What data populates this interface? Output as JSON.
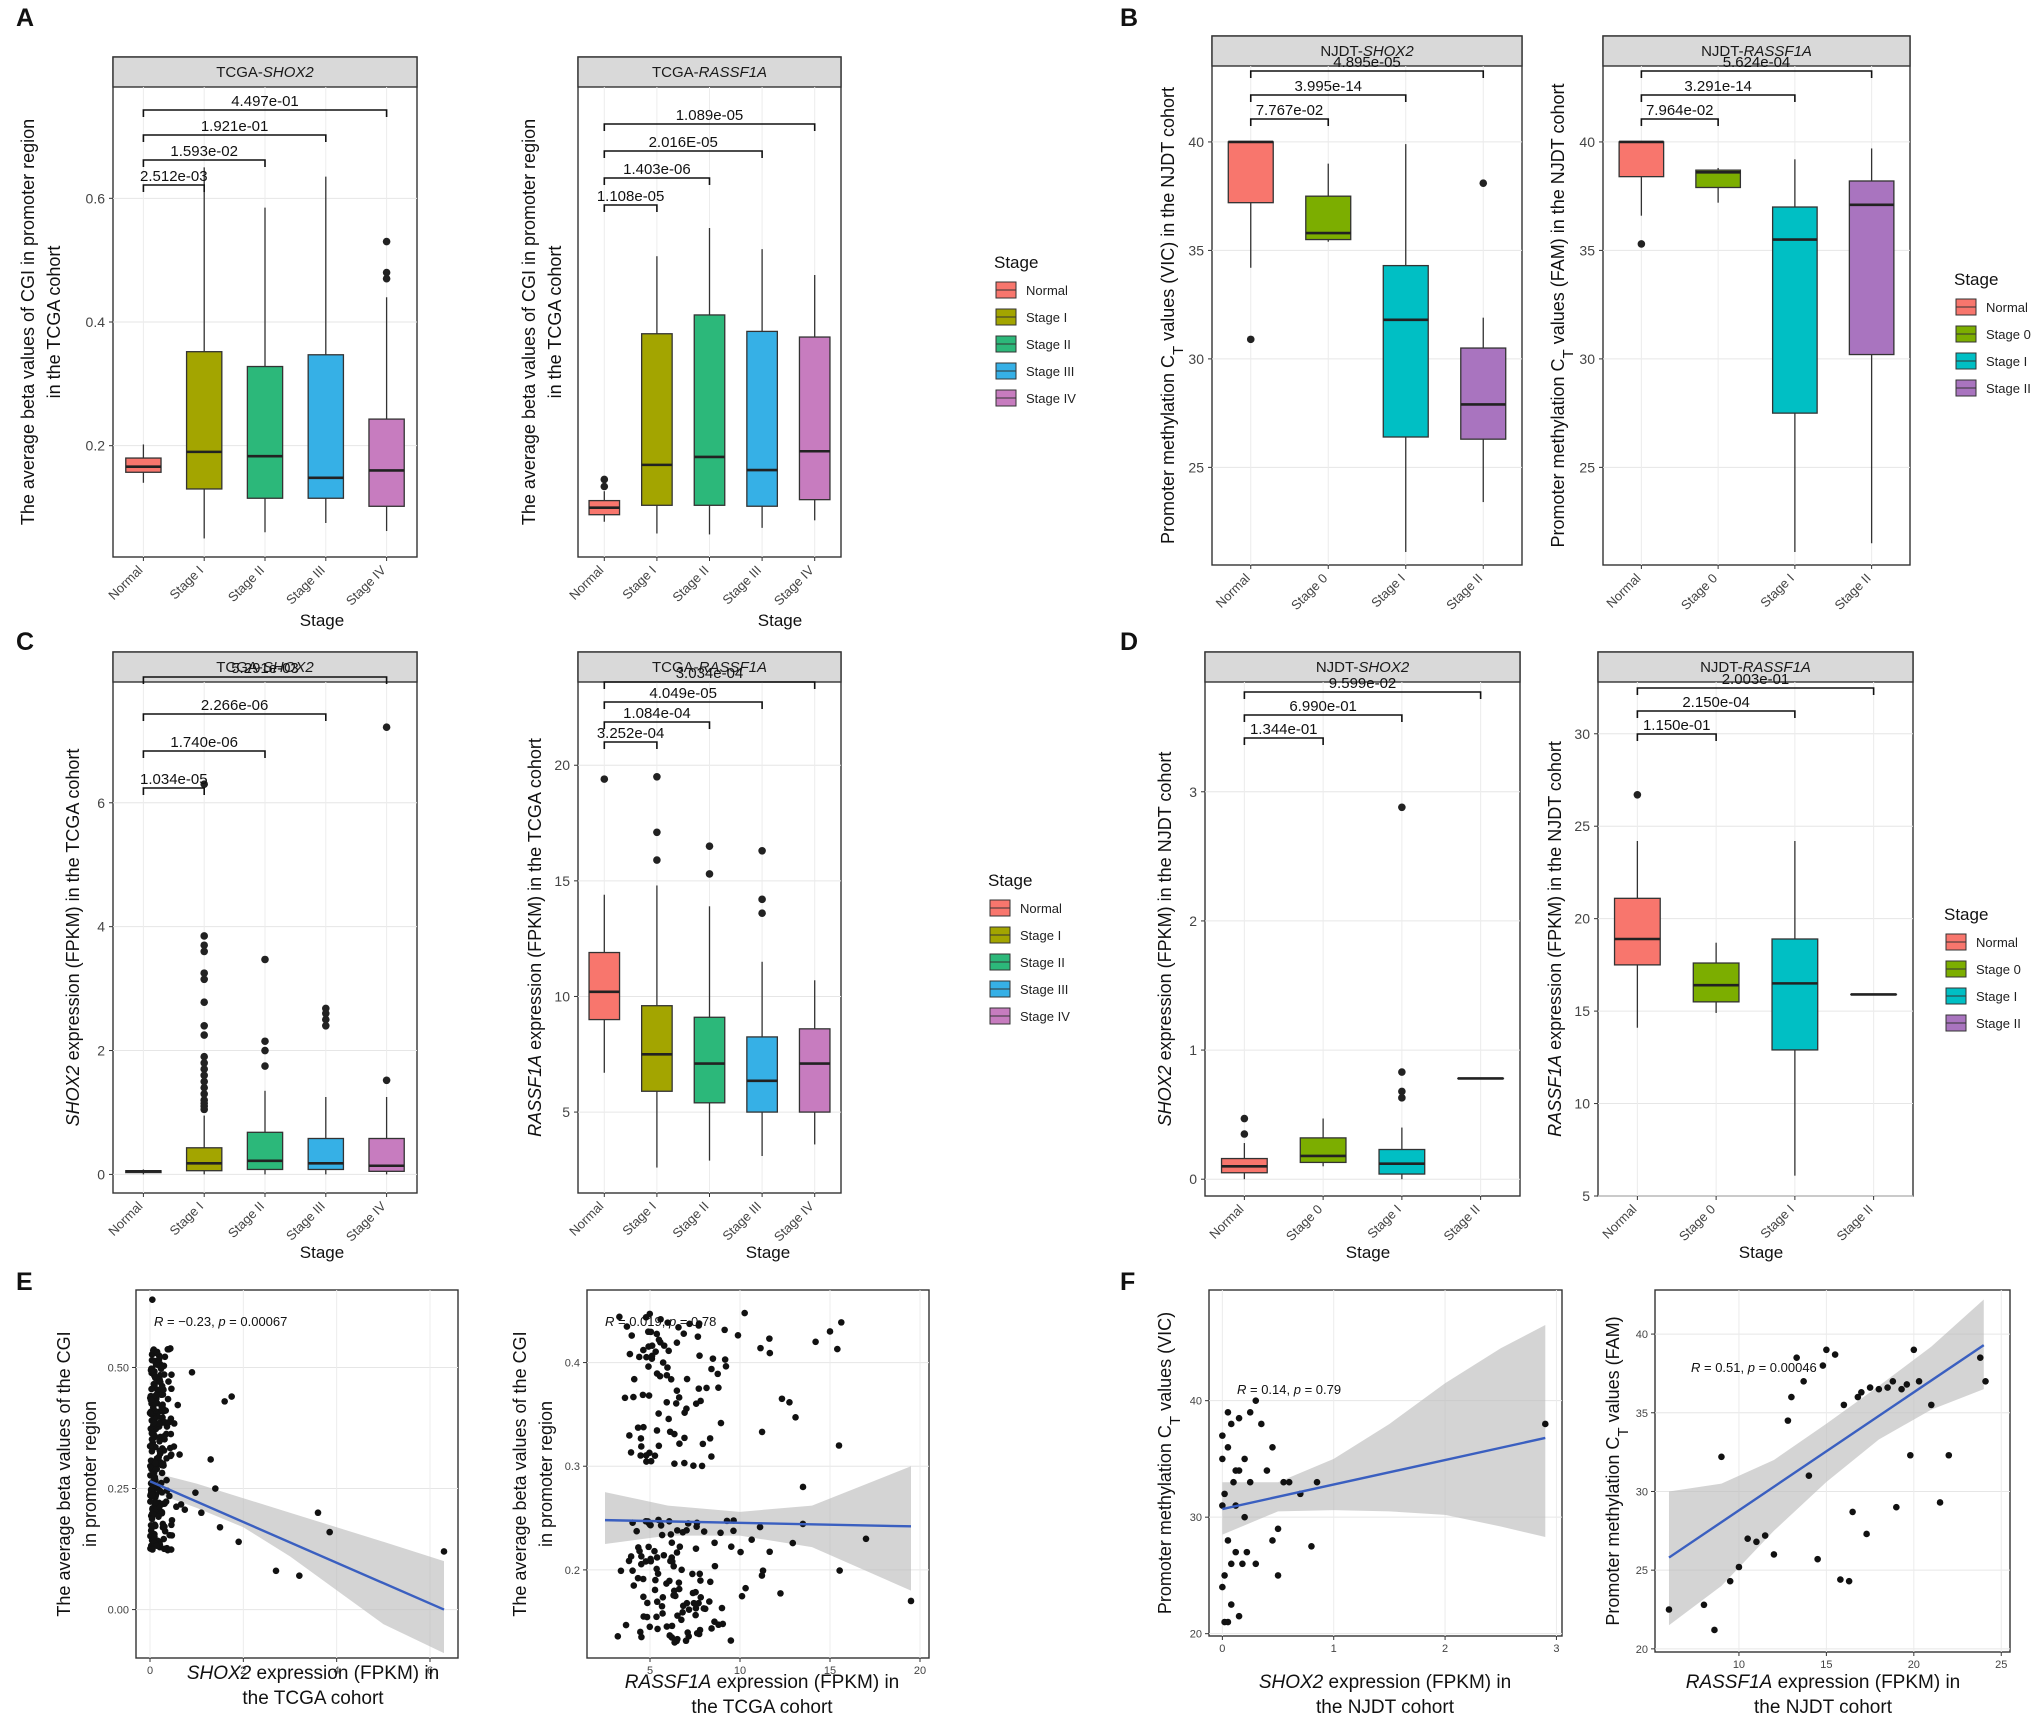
{
  "colors": {
    "normal": "#F8766D",
    "stage1": "#A3A500",
    "stage2": "#2CB87A",
    "stage3": "#36B0E6",
    "stage4": "#C77CBF",
    "njdt_stage0": "#7CAE00",
    "njdt_stage1": "#00BFC4",
    "njdt_stage2": "#A974BF",
    "regression_line": "#3A5FC0",
    "ci_band": "#BDBDBD",
    "strip": "#D9D9D9"
  },
  "chart_data": [
    {
      "panel": "A",
      "subtitle": "TCGA-SHOX2",
      "type": "box",
      "categories": [
        "Normal",
        "Stage I",
        "Stage II",
        "Stage III",
        "Stage IV"
      ],
      "xlabel": "Stage",
      "ylabel": [
        "The average beta values of CGI in promoter region",
        "in the TCGA cohort"
      ],
      "ylim": [
        0.02,
        0.78
      ],
      "yticks": [
        0.2,
        0.4,
        0.6
      ],
      "ytick_labels": [
        "0.2",
        "0.4",
        "0.6"
      ],
      "boxes": [
        {
          "q1": 0.157,
          "med": 0.166,
          "q3": 0.18,
          "lo": 0.14,
          "hi": 0.202,
          "out": []
        },
        {
          "q1": 0.13,
          "med": 0.19,
          "q3": 0.352,
          "lo": 0.05,
          "hi": 0.65,
          "out": []
        },
        {
          "q1": 0.115,
          "med": 0.183,
          "q3": 0.328,
          "lo": 0.06,
          "hi": 0.585,
          "out": []
        },
        {
          "q1": 0.115,
          "med": 0.148,
          "q3": 0.347,
          "lo": 0.075,
          "hi": 0.635,
          "out": []
        },
        {
          "q1": 0.102,
          "med": 0.16,
          "q3": 0.243,
          "lo": 0.062,
          "hi": 0.44,
          "out": [
            0.53,
            0.48,
            0.47
          ]
        }
      ],
      "brackets": [
        {
          "to": 1,
          "label": "2.512e-03"
        },
        {
          "to": 2,
          "label": "1.593e-02"
        },
        {
          "to": 3,
          "label": "1.921e-01"
        },
        {
          "to": 4,
          "label": "4.497e-01"
        }
      ],
      "legend": {
        "title": "Stage",
        "items": [
          "Normal",
          "Stage I",
          "Stage II",
          "Stage III",
          "Stage IV"
        ]
      }
    },
    {
      "panel": "A",
      "subtitle": "TCGA-RASSF1A",
      "type": "box",
      "categories": [
        "Normal",
        "Stage I",
        "Stage II",
        "Stage III",
        "Stage IV"
      ],
      "xlabel": "Stage",
      "ylabel": [
        "The average beta values of CGI in promoter region",
        "in the TCGA cohort"
      ],
      "ylim": [
        0,
        1
      ],
      "yticks": [],
      "ytick_labels": [],
      "boxes": [
        {
          "q1": 0.09,
          "med": 0.105,
          "q3": 0.12,
          "lo": 0.075,
          "hi": 0.14,
          "out": [
            0.165,
            0.15
          ]
        },
        {
          "q1": 0.11,
          "med": 0.196,
          "q3": 0.475,
          "lo": 0.05,
          "hi": 0.64,
          "out": []
        },
        {
          "q1": 0.11,
          "med": 0.213,
          "q3": 0.515,
          "lo": 0.048,
          "hi": 0.7,
          "out": []
        },
        {
          "q1": 0.108,
          "med": 0.185,
          "q3": 0.48,
          "lo": 0.062,
          "hi": 0.655,
          "out": []
        },
        {
          "q1": 0.122,
          "med": 0.225,
          "q3": 0.468,
          "lo": 0.078,
          "hi": 0.6,
          "out": []
        }
      ],
      "brackets": [
        {
          "to": 1,
          "label": "1.108e-05"
        },
        {
          "to": 2,
          "label": "1.403e-06"
        },
        {
          "to": 3,
          "label": "2.016E-05"
        },
        {
          "to": 4,
          "label": "1.089e-05"
        }
      ]
    },
    {
      "panel": "B",
      "subtitle": "NJDT-SHOX2",
      "type": "box",
      "categories": [
        "Normal",
        "Stage 0",
        "Stage I",
        "Stage II"
      ],
      "xlabel": "",
      "ylabel": [
        "Promoter methylation CT values (VIC) in the NJDT cohort"
      ],
      "ylim": [
        20.5,
        43.5
      ],
      "yticks": [
        25,
        30,
        35,
        40
      ],
      "ytick_labels": [
        "25",
        "30",
        "35",
        "40"
      ],
      "boxes": [
        {
          "q1": 37.2,
          "med": 40.0,
          "q3": 40.0,
          "lo": 34.2,
          "hi": 40.0,
          "out": [
            30.9
          ]
        },
        {
          "q1": 35.5,
          "med": 35.8,
          "q3": 37.5,
          "lo": 35.4,
          "hi": 39.0,
          "out": []
        },
        {
          "q1": 26.4,
          "med": 31.8,
          "q3": 34.3,
          "lo": 21.1,
          "hi": 39.9,
          "out": []
        },
        {
          "q1": 26.3,
          "med": 27.9,
          "q3": 30.5,
          "lo": 23.4,
          "hi": 31.9,
          "out": [
            38.1
          ]
        }
      ],
      "brackets": [
        {
          "to": 1,
          "label": "7.767e-02"
        },
        {
          "to": 2,
          "label": "3.995e-14"
        },
        {
          "to": 3,
          "label": "4.895e-05"
        }
      ]
    },
    {
      "panel": "B",
      "subtitle": "NJDT-RASSF1A",
      "type": "box",
      "categories": [
        "Normal",
        "Stage 0",
        "Stage I",
        "Stage II"
      ],
      "xlabel": "",
      "ylabel": [
        "Promoter methylation CT values (FAM) in the NJDT cohort"
      ],
      "ylim": [
        20.5,
        43.5
      ],
      "yticks": [
        25,
        30,
        35,
        40
      ],
      "ytick_labels": [
        "25",
        "30",
        "35",
        "40"
      ],
      "boxes": [
        {
          "q1": 38.4,
          "med": 40.0,
          "q3": 40.0,
          "lo": 36.6,
          "hi": 40.0,
          "out": [
            35.3
          ]
        },
        {
          "q1": 37.9,
          "med": 38.6,
          "q3": 38.7,
          "lo": 37.2,
          "hi": 38.8,
          "out": []
        },
        {
          "q1": 27.5,
          "med": 35.5,
          "q3": 37.0,
          "lo": 21.1,
          "hi": 39.2,
          "out": []
        },
        {
          "q1": 30.2,
          "med": 37.1,
          "q3": 38.2,
          "lo": 21.5,
          "hi": 39.7,
          "out": []
        }
      ],
      "brackets": [
        {
          "to": 1,
          "label": "7.964e-02"
        },
        {
          "to": 2,
          "label": "3.291e-14"
        },
        {
          "to": 3,
          "label": "5.624e-04"
        }
      ],
      "legend": {
        "title": "Stage",
        "items": [
          "Normal",
          "Stage 0",
          "Stage I",
          "Stage II"
        ]
      }
    },
    {
      "panel": "C",
      "subtitle": "TCGA-SHOX2",
      "type": "box",
      "categories": [
        "Normal",
        "Stage I",
        "Stage II",
        "Stage III",
        "Stage IV"
      ],
      "xlabel": "Stage",
      "ylabel": [
        "SHOX2 expression (FPKM) in the TCGA cohort"
      ],
      "ylim": [
        -0.3,
        7.95
      ],
      "yticks": [
        0,
        2,
        4,
        6
      ],
      "ytick_labels": [
        "0",
        "2",
        "4",
        "6"
      ],
      "boxes": [
        {
          "q1": 0.03,
          "med": 0.05,
          "q3": 0.06,
          "lo": 0.0,
          "hi": 0.08,
          "out": []
        },
        {
          "q1": 0.06,
          "med": 0.18,
          "q3": 0.43,
          "lo": 0.0,
          "hi": 0.95,
          "out": [
            6.3,
            3.85,
            3.7,
            3.6,
            3.25,
            3.15,
            2.78,
            2.4,
            2.25,
            1.2,
            1.3,
            1.4,
            1.5,
            1.6,
            1.7,
            1.8,
            1.9,
            1.05,
            1.1,
            1.15
          ]
        },
        {
          "q1": 0.08,
          "med": 0.22,
          "q3": 0.68,
          "lo": 0.0,
          "hi": 1.35,
          "out": [
            3.47,
            2.15,
            2.0,
            1.75
          ]
        },
        {
          "q1": 0.08,
          "med": 0.18,
          "q3": 0.58,
          "lo": 0.0,
          "hi": 1.25,
          "out": [
            2.68,
            2.6,
            2.5,
            2.4
          ]
        },
        {
          "q1": 0.05,
          "med": 0.14,
          "q3": 0.58,
          "lo": 0.0,
          "hi": 1.25,
          "out": [
            7.22,
            1.52
          ]
        }
      ],
      "brackets": [
        {
          "to": 1,
          "label": "1.034e-05"
        },
        {
          "to": 2,
          "label": "1.740e-06"
        },
        {
          "to": 3,
          "label": "2.266e-06"
        },
        {
          "to": 4,
          "label": "5.291e-03"
        }
      ]
    },
    {
      "panel": "C",
      "subtitle": "TCGA-RASSF1A",
      "type": "box",
      "categories": [
        "Normal",
        "Stage I",
        "Stage II",
        "Stage III",
        "Stage IV"
      ],
      "xlabel": "Stage",
      "ylabel": [
        "RASSF1A expression (FPKM) in the TCGA cohort"
      ],
      "ylim": [
        1.5,
        23.6
      ],
      "yticks": [
        5,
        10,
        15,
        20
      ],
      "ytick_labels": [
        "5",
        "10",
        "15",
        "20"
      ],
      "boxes": [
        {
          "q1": 9.0,
          "med": 10.2,
          "q3": 11.9,
          "lo": 6.7,
          "hi": 14.4,
          "out": [
            19.4
          ]
        },
        {
          "q1": 5.9,
          "med": 7.5,
          "q3": 9.6,
          "lo": 2.6,
          "hi": 14.8,
          "out": [
            19.5,
            17.1,
            15.9
          ]
        },
        {
          "q1": 5.4,
          "med": 7.1,
          "q3": 9.1,
          "lo": 2.9,
          "hi": 13.9,
          "out": [
            16.5,
            15.3
          ]
        },
        {
          "q1": 5.0,
          "med": 6.35,
          "q3": 8.25,
          "lo": 3.1,
          "hi": 11.5,
          "out": [
            16.3,
            14.2,
            13.6
          ]
        },
        {
          "q1": 5.0,
          "med": 7.1,
          "q3": 8.6,
          "lo": 3.6,
          "hi": 10.7,
          "out": []
        }
      ],
      "brackets": [
        {
          "to": 1,
          "label": "3.252e-04"
        },
        {
          "to": 2,
          "label": "1.084e-04"
        },
        {
          "to": 3,
          "label": "4.049e-05"
        },
        {
          "to": 4,
          "label": "3.034e-04"
        }
      ],
      "legend": {
        "title": "Stage",
        "items": [
          "Normal",
          "Stage I",
          "Stage II",
          "Stage III",
          "Stage IV"
        ]
      }
    },
    {
      "panel": "D",
      "subtitle": "NJDT-SHOX2",
      "type": "box",
      "categories": [
        "Normal",
        "Stage 0",
        "Stage I",
        "Stage II"
      ],
      "xlabel": "Stage",
      "ylabel": [
        "SHOX2 expression (FPKM) in the NJDT cohort"
      ],
      "ylim": [
        -0.13,
        3.85
      ],
      "yticks": [
        0,
        1,
        2,
        3
      ],
      "ytick_labels": [
        "0",
        "1",
        "2",
        "3"
      ],
      "boxes": [
        {
          "q1": 0.05,
          "med": 0.1,
          "q3": 0.16,
          "lo": 0.0,
          "hi": 0.28,
          "out": [
            0.47,
            0.35
          ]
        },
        {
          "q1": 0.13,
          "med": 0.18,
          "q3": 0.32,
          "lo": 0.1,
          "hi": 0.47,
          "out": []
        },
        {
          "q1": 0.04,
          "med": 0.12,
          "q3": 0.23,
          "lo": 0.0,
          "hi": 0.4,
          "out": [
            2.88,
            0.83,
            0.68,
            0.63
          ]
        },
        {
          "q1": 0.78,
          "med": 0.78,
          "q3": 0.78,
          "lo": 0.78,
          "hi": 0.78,
          "out": []
        }
      ],
      "brackets": [
        {
          "to": 1,
          "label": "1.344e-01"
        },
        {
          "to": 2,
          "label": "6.990e-01"
        },
        {
          "to": 3,
          "label": "9.599e-02"
        }
      ]
    },
    {
      "panel": "D",
      "subtitle": "NJDT-RASSF1A",
      "type": "box",
      "categories": [
        "Normal",
        "Stage 0",
        "Stage I",
        "Stage II"
      ],
      "xlabel": "Stage",
      "ylabel": [
        "RASSF1A expression (FPKM) in the NJDT cohort"
      ],
      "ylim": [
        5,
        32.8
      ],
      "yticks": [
        5,
        10,
        15,
        20,
        25,
        30
      ],
      "ytick_labels": [
        "5",
        "10",
        "15",
        "20",
        "25",
        "30"
      ],
      "boxes": [
        {
          "q1": 17.5,
          "med": 18.9,
          "q3": 21.1,
          "lo": 14.1,
          "hi": 24.2,
          "out": [
            26.7
          ]
        },
        {
          "q1": 15.5,
          "med": 16.4,
          "q3": 17.6,
          "lo": 14.9,
          "hi": 18.7,
          "out": []
        },
        {
          "q1": 12.9,
          "med": 16.5,
          "q3": 18.9,
          "lo": 6.1,
          "hi": 24.2,
          "out": []
        },
        {
          "q1": 15.9,
          "med": 15.9,
          "q3": 15.9,
          "lo": 15.9,
          "hi": 15.9,
          "out": []
        }
      ],
      "brackets": [
        {
          "to": 1,
          "label": "1.150e-01"
        },
        {
          "to": 2,
          "label": "2.150e-04"
        },
        {
          "to": 3,
          "label": "2.003e-01"
        }
      ],
      "legend": {
        "title": "Stage",
        "items": [
          "Normal",
          "Stage 0",
          "Stage I",
          "Stage II"
        ]
      }
    },
    {
      "panel": "E",
      "type": "scatter",
      "annotation": "R = −0.23, p = 0.00067",
      "xlabel": [
        "SHOX2 expression (FPKM) in",
        "the TCGA cohort"
      ],
      "ylabel": [
        "The average beta values of  the CGI",
        "in promoter region"
      ],
      "xlim": [
        -0.3,
        6.6
      ],
      "ylim": [
        -0.1,
        0.66
      ],
      "xticks": [
        0,
        2,
        4,
        6
      ],
      "xtick_labels": [
        "0",
        "2",
        "4",
        "6"
      ],
      "yticks": [
        0,
        0.25,
        0.5
      ],
      "ytick_labels": [
        "0.00",
        "0.25",
        "0.50"
      ],
      "fit": {
        "x0": 0,
        "y0": 0.265,
        "x1": 6.3,
        "y1": 0.0
      },
      "band": {
        "x": [
          0,
          1,
          2,
          3,
          4,
          5,
          6.3
        ],
        "lo": [
          0.245,
          0.21,
          0.17,
          0.11,
          0.04,
          -0.03,
          -0.09
        ],
        "hi": [
          0.285,
          0.26,
          0.23,
          0.2,
          0.17,
          0.14,
          0.1
        ]
      }
    },
    {
      "panel": "E",
      "type": "scatter",
      "annotation": "R = 0.019, p = 0.78",
      "xlabel": [
        "RASSF1A  expression (FPKM) in",
        "the TCGA cohort"
      ],
      "ylabel": [
        "The average beta values of  the CGI",
        "in promoter region"
      ],
      "xlim": [
        1.5,
        20.5
      ],
      "ylim": [
        0.115,
        0.47
      ],
      "xticks": [
        5,
        10,
        15,
        20
      ],
      "xtick_labels": [
        "5",
        "10",
        "15",
        "20"
      ],
      "yticks": [
        0.2,
        0.3,
        0.4
      ],
      "ytick_labels": [
        "0.2",
        "0.3",
        "0.4"
      ],
      "fit": {
        "x0": 2.5,
        "y0": 0.248,
        "x1": 19.5,
        "y1": 0.242
      },
      "band": {
        "x": [
          2.5,
          6,
          10,
          14,
          19.5
        ],
        "lo": [
          0.225,
          0.233,
          0.233,
          0.222,
          0.18
        ],
        "hi": [
          0.275,
          0.262,
          0.256,
          0.262,
          0.3
        ]
      }
    },
    {
      "panel": "F",
      "type": "scatter",
      "annotation": "R = 0.14, p = 0.79",
      "xlabel": [
        "SHOX2 expression (FPKM) in",
        "the NJDT cohort"
      ],
      "ylabel": [
        "Promoter methylation CT values (VIC)"
      ],
      "xlim": [
        -0.12,
        3.05
      ],
      "ylim": [
        19.8,
        49.5
      ],
      "xticks": [
        0,
        1,
        2,
        3
      ],
      "xtick_labels": [
        "0",
        "1",
        "2",
        "3"
      ],
      "yticks": [
        20,
        30,
        40
      ],
      "ytick_labels": [
        "20",
        "30",
        "40"
      ],
      "fit": {
        "x0": 0,
        "y0": 30.7,
        "x1": 2.9,
        "y1": 36.8
      },
      "band": {
        "x": [
          0,
          0.5,
          1,
          1.5,
          2,
          2.5,
          2.9
        ],
        "lo": [
          28.5,
          30.5,
          30.6,
          30.5,
          30.2,
          29.2,
          28.3
        ],
        "hi": [
          33.0,
          33.0,
          35.0,
          38.0,
          41.5,
          44.5,
          46.5
        ]
      }
    },
    {
      "panel": "F",
      "type": "scatter",
      "annotation": "R = 0.51, p = 0.00046",
      "xlabel": [
        "RASSF1A  expression (FPKM) in",
        "the NJDT cohort"
      ],
      "ylabel": [
        "Promoter methylation CT values (FAM)"
      ],
      "xlim": [
        5.2,
        25.5
      ],
      "ylim": [
        19.8,
        42.8
      ],
      "xticks": [
        10,
        15,
        20,
        25
      ],
      "xtick_labels": [
        "10",
        "15",
        "20",
        "25"
      ],
      "yticks": [
        20,
        25,
        30,
        35,
        40
      ],
      "ytick_labels": [
        "20",
        "25",
        "30",
        "35",
        "40"
      ],
      "fit": {
        "x0": 6,
        "y0": 25.8,
        "x1": 24,
        "y1": 39.3
      },
      "band": {
        "x": [
          6,
          9,
          12,
          15,
          18,
          21,
          24
        ],
        "lo": [
          21.5,
          24.0,
          27.5,
          30.6,
          33.3,
          35.2,
          36.5
        ],
        "hi": [
          30.0,
          30.5,
          32.0,
          34.3,
          36.7,
          39.2,
          42.2
        ]
      }
    }
  ],
  "panel_labels": [
    "A",
    "B",
    "C",
    "D",
    "E",
    "F"
  ]
}
